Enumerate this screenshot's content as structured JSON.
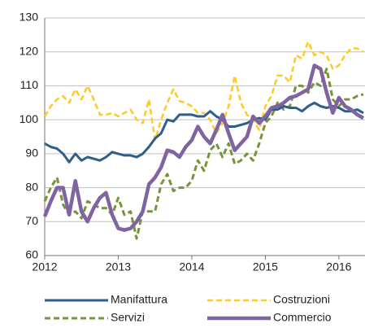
{
  "chart_data": {
    "type": "line",
    "x": [
      2012,
      2012.083,
      2012.167,
      2012.25,
      2012.333,
      2012.417,
      2012.5,
      2012.583,
      2012.667,
      2012.75,
      2012.833,
      2012.917,
      2013,
      2013.083,
      2013.167,
      2013.25,
      2013.333,
      2013.417,
      2013.5,
      2013.583,
      2013.667,
      2013.75,
      2013.833,
      2013.917,
      2014,
      2014.083,
      2014.167,
      2014.25,
      2014.333,
      2014.417,
      2014.5,
      2014.583,
      2014.667,
      2014.75,
      2014.833,
      2014.917,
      2015,
      2015.083,
      2015.167,
      2015.25,
      2015.333,
      2015.417,
      2015.5,
      2015.583,
      2015.667,
      2015.75,
      2015.833,
      2015.917,
      2016,
      2016.083,
      2016.167,
      2016.25,
      2016.333
    ],
    "series": [
      {
        "name": "Manifattura",
        "color": "#2e5f8a",
        "dashed": false,
        "width": 3,
        "values": [
          93,
          92,
          91.5,
          90,
          87.5,
          90,
          88,
          89,
          88.5,
          88,
          89,
          90.5,
          90,
          89.5,
          89.5,
          89,
          90,
          92,
          94.5,
          96,
          100,
          99.5,
          101.5,
          101.5,
          101.5,
          101,
          101,
          102.5,
          101,
          100,
          98,
          98,
          98.5,
          99,
          100,
          100.5,
          100,
          103,
          103,
          104,
          103.5,
          103.5,
          102.5,
          104,
          105,
          104,
          103.5,
          104,
          103.5,
          102.5,
          102.5,
          103,
          102
        ]
      },
      {
        "name": "Costruzioni",
        "color": "#ffc926",
        "dashed": true,
        "width": 2.5,
        "values": [
          101,
          104,
          106,
          107,
          105,
          109,
          106,
          110,
          106,
          101.5,
          101.5,
          102,
          101,
          102,
          103,
          100,
          99,
          106,
          94,
          100,
          105,
          109,
          105.5,
          105,
          104,
          102,
          102,
          100,
          96,
          99,
          104,
          113,
          105,
          101.5,
          100,
          97,
          104,
          107,
          113,
          113,
          111,
          119,
          118,
          123,
          119,
          120,
          119,
          115,
          116,
          119,
          121,
          121,
          120
        ]
      },
      {
        "name": "Servizi",
        "color": "#77933c",
        "dashed": true,
        "width": 3,
        "values": [
          76,
          80,
          83,
          75,
          72,
          73,
          71,
          76,
          75,
          74,
          74,
          72,
          77,
          72,
          73,
          65,
          73,
          73,
          73,
          81,
          84,
          79,
          80,
          80,
          82,
          88,
          85,
          91,
          93,
          89,
          93,
          87,
          88,
          90,
          88,
          93,
          99,
          101,
          105,
          103,
          104,
          110,
          110,
          108,
          111,
          110,
          115,
          106,
          104,
          106,
          106,
          107,
          107.5
        ]
      },
      {
        "name": "Commercio",
        "color": "#8064a2",
        "dashed": false,
        "width": 4.5,
        "values": [
          71.5,
          76,
          80,
          80,
          72,
          82,
          73,
          70,
          74,
          77,
          78.5,
          72,
          68,
          67.5,
          68,
          70,
          73,
          81,
          83,
          86,
          91,
          90.5,
          89,
          92,
          94,
          98,
          95,
          93,
          97,
          101.5,
          96,
          91,
          93,
          95,
          101,
          99,
          101,
          103.5,
          104,
          105,
          106.5,
          107,
          108,
          109,
          116,
          115,
          108,
          102,
          106.5,
          104,
          103,
          101.5,
          100.5
        ]
      }
    ],
    "xlim": [
      2012,
      2016.333
    ],
    "xticks": [
      2012,
      2013,
      2014,
      2015,
      2016
    ],
    "ylim": [
      60,
      130
    ],
    "yticks": [
      60,
      70,
      80,
      90,
      100,
      110,
      120,
      130
    ],
    "grid": true,
    "legend": "bottom"
  }
}
